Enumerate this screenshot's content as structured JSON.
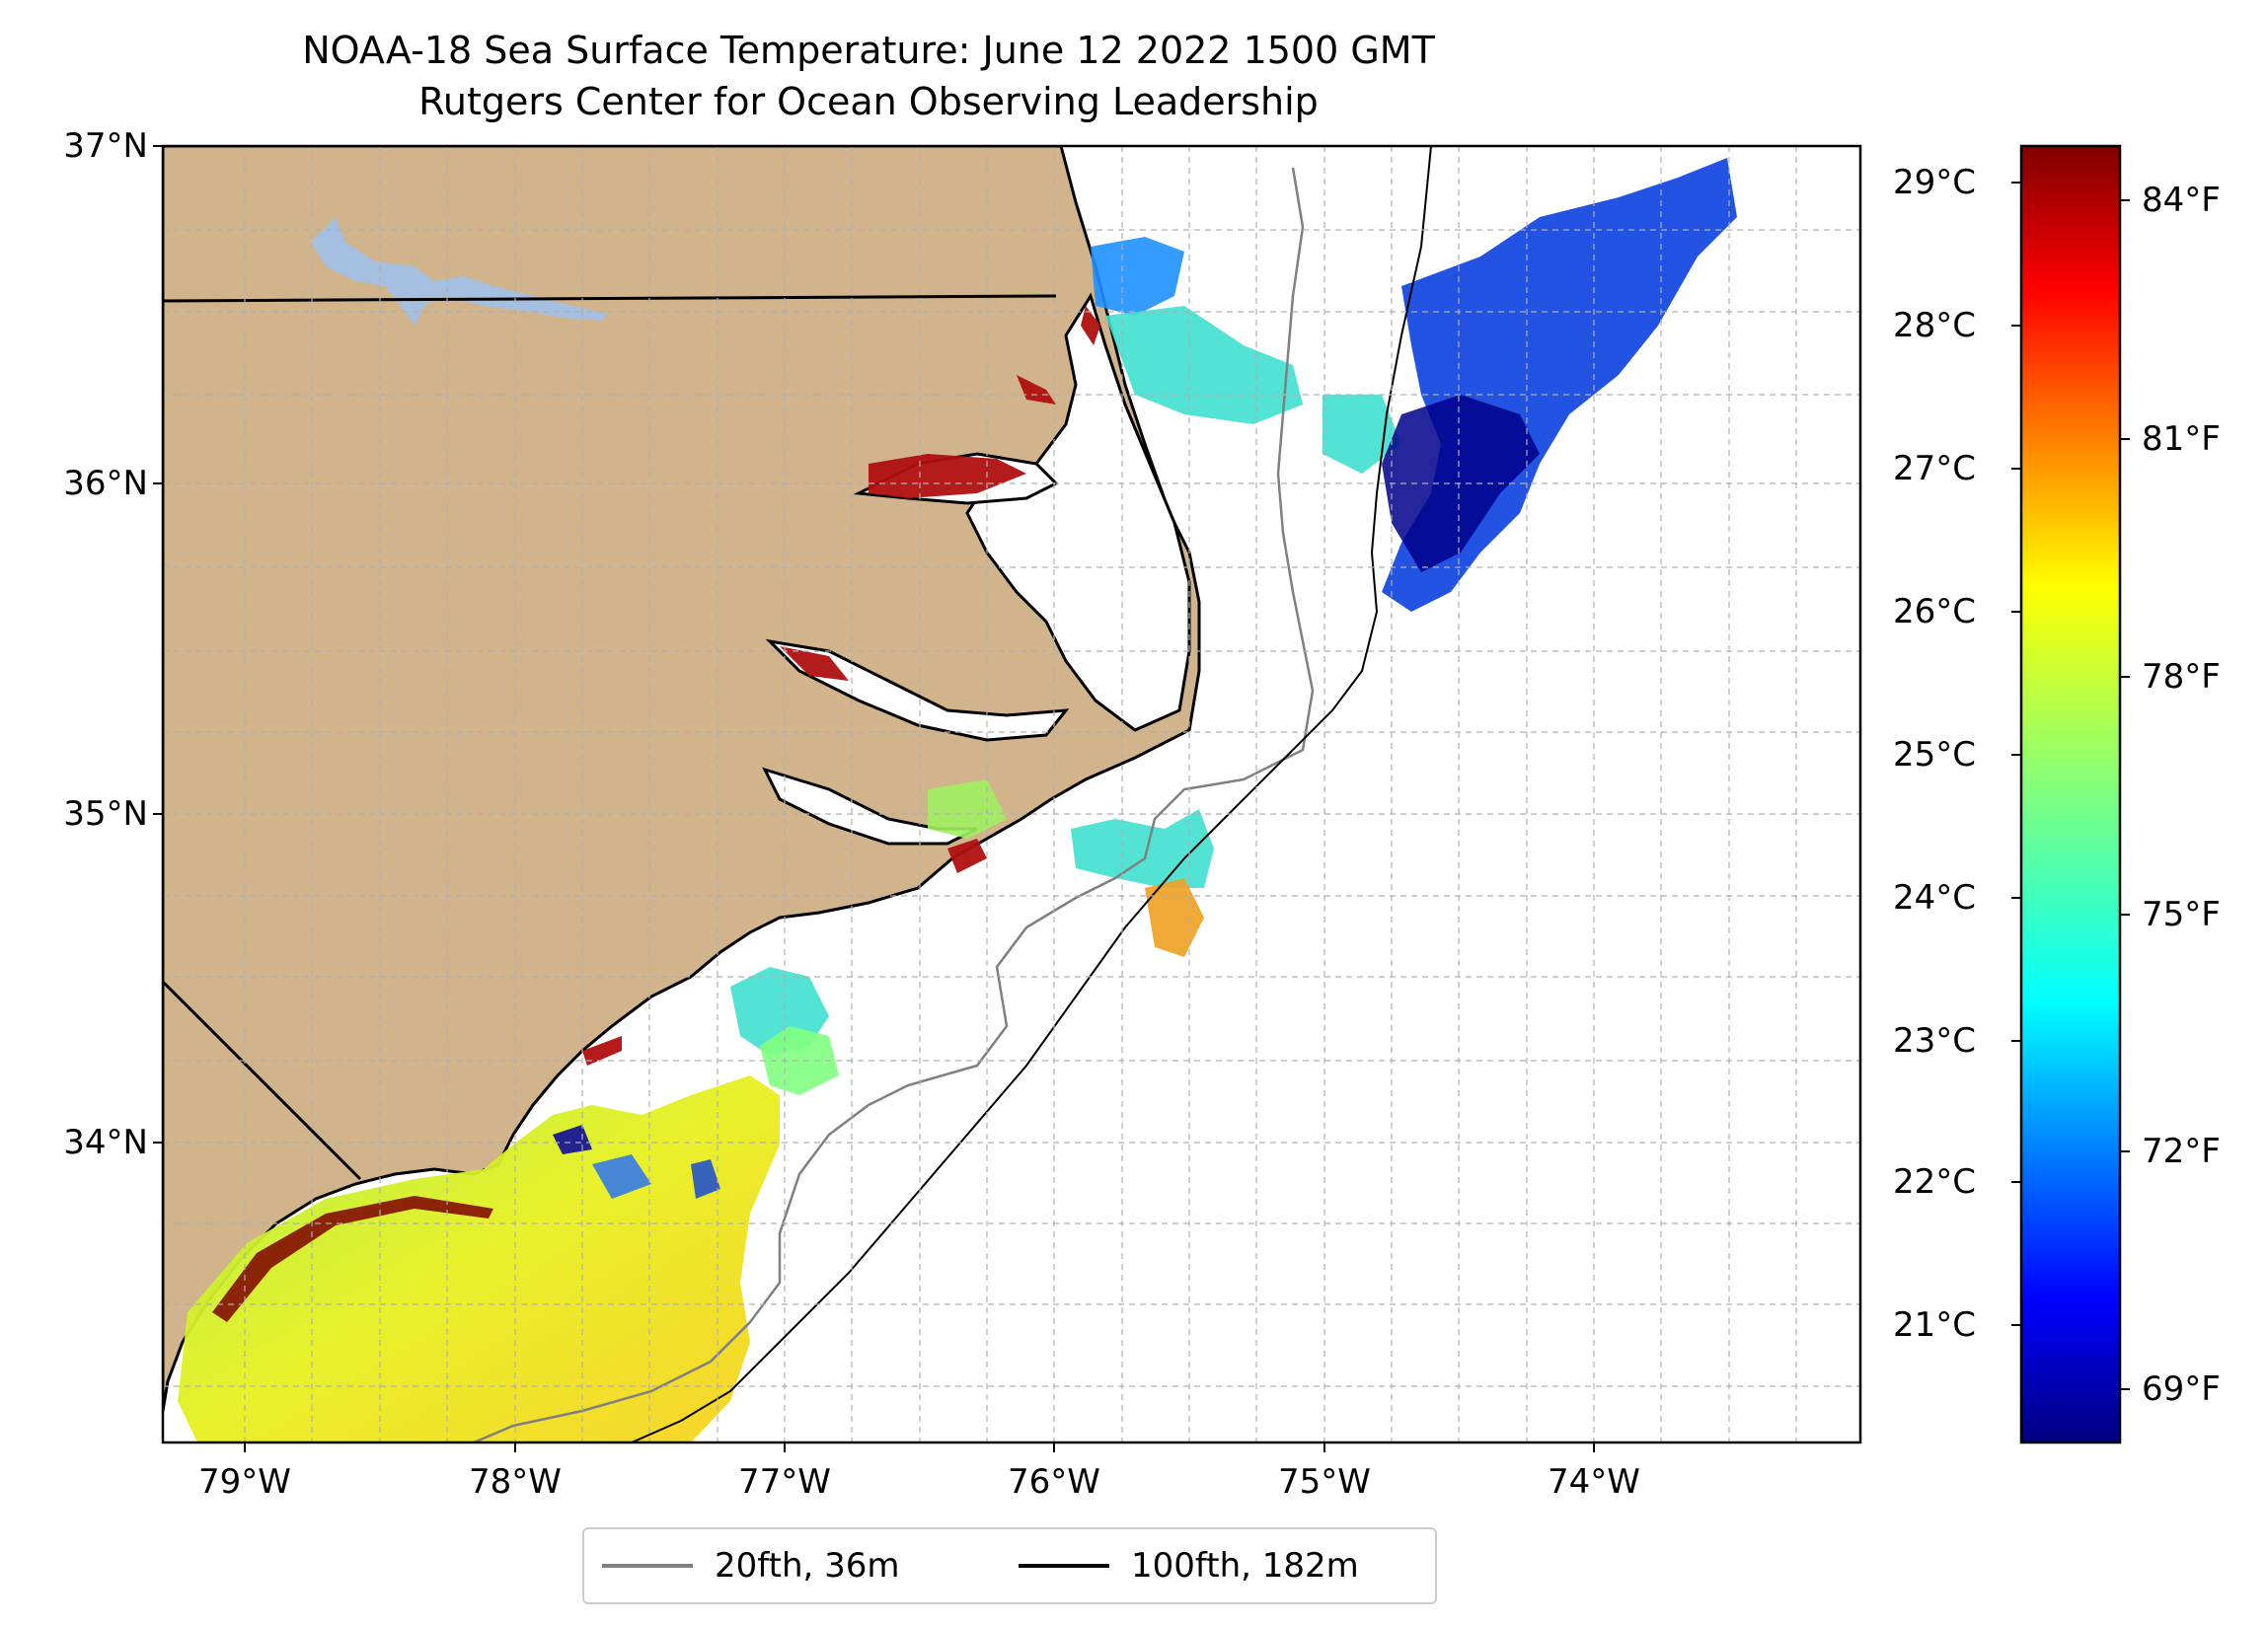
{
  "title": {
    "line1": "NOAA-18 Sea Surface Temperature: June 12 2022 1500 GMT",
    "line2": "Rutgers Center for Ocean Observing Leadership"
  },
  "map": {
    "lat_labels": [
      "37°N",
      "36°N",
      "35°N",
      "34°N"
    ],
    "lon_labels": [
      "79°W",
      "78°W",
      "77°W",
      "76°W",
      "75°W",
      "74°W"
    ],
    "land_color": "#d2b48c",
    "lake_color": "#a4bfe0"
  },
  "colorbar": {
    "colormap": "jet",
    "celsius_labels": [
      "29°C",
      "28°C",
      "27°C",
      "26°C",
      "25°C",
      "24°C",
      "23°C",
      "22°C",
      "21°C"
    ],
    "fahrenheit_labels": [
      "84°F",
      "81°F",
      "78°F",
      "75°F",
      "72°F",
      "69°F"
    ]
  },
  "legend": {
    "items": [
      {
        "label": "20fth, 36m",
        "color": "#808080"
      },
      {
        "label": "100fth, 182m",
        "color": "#000000"
      }
    ]
  }
}
